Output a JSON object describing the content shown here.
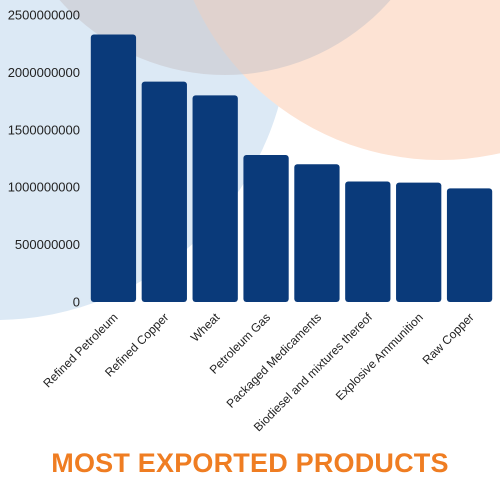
{
  "colors": {
    "bar": "#0a3a7a",
    "title": "#ef7d22",
    "bg_blue": "#dce9f5",
    "bg_peach": "#fde3d4",
    "bg_grey": "#c9c4c9",
    "axis_text": "#222222"
  },
  "chart_data": {
    "type": "bar",
    "title": "MOST EXPORTED PRODUCTS",
    "xlabel": "",
    "ylabel": "",
    "ylim": [
      0,
      2500000000
    ],
    "yticks": [
      "0",
      "500000000",
      "1000000000",
      "1500000000",
      "2000000000",
      "2500000000"
    ],
    "grid": false,
    "categories": [
      "Refined Petroleum",
      "Refined Copper",
      "Wheat",
      "Petroleum Gas",
      "Packaged Medicaments",
      "Biodiesel and mixtures thereof",
      "Explosive Ammunition",
      "Raw Copper"
    ],
    "values": [
      2330000000,
      1920000000,
      1800000000,
      1280000000,
      1200000000,
      1050000000,
      1040000000,
      990000000
    ]
  }
}
